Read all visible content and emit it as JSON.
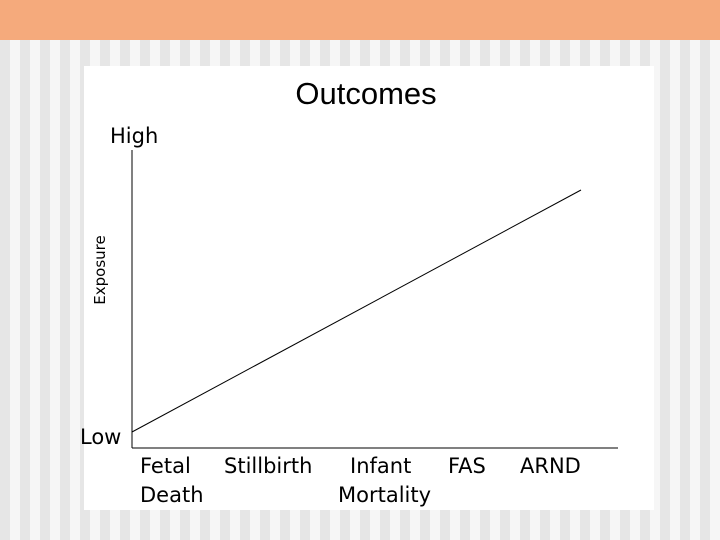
{
  "title": "Outcomes",
  "y_axis": {
    "label": "Exposure",
    "high": "High",
    "low": "Low"
  },
  "x_axis": {
    "categories": [
      {
        "lines": [
          "Fetal",
          "Death"
        ]
      },
      {
        "lines": [
          "Stillbirth"
        ]
      },
      {
        "lines": [
          "Infant",
          "Mortality"
        ]
      },
      {
        "lines": [
          "FAS"
        ]
      },
      {
        "lines": [
          "ARND"
        ]
      }
    ]
  }
}
